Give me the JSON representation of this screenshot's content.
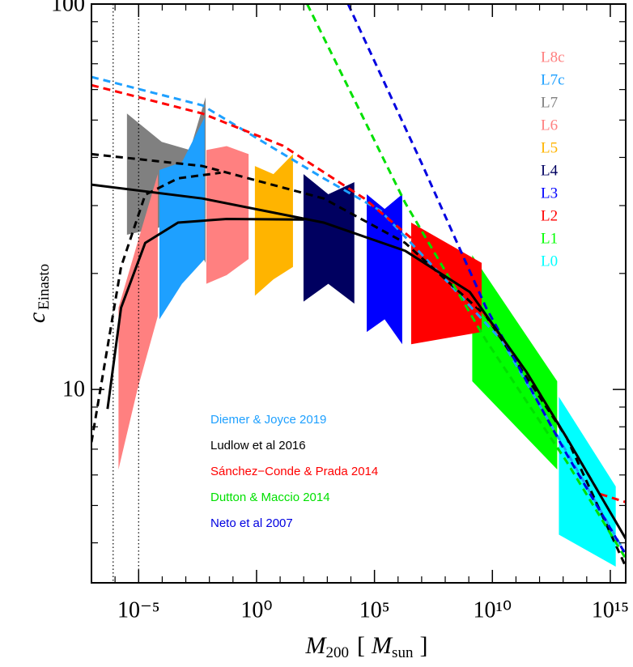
{
  "chart_data": {
    "type": "line",
    "x_scale": "log",
    "y_scale": "log",
    "xlim": [
      1e-07,
      4500000000000000.0
    ],
    "ylim": [
      3.15,
      100
    ],
    "xticks": [
      {
        "value": 1e-05,
        "label": "10⁻⁵"
      },
      {
        "value": 1,
        "label": "10⁰"
      },
      {
        "value": 100000,
        "label": "10⁵"
      },
      {
        "value": 10000000000,
        "label": "10¹⁰"
      },
      {
        "value": 1000000000000000.0,
        "label": "10¹⁵"
      }
    ],
    "yticks": [
      10,
      100
    ],
    "xminor_ticks": [
      1e-07,
      1e-06,
      0.0001,
      0.001,
      0.01,
      0.1,
      10,
      100,
      1000,
      10000,
      1000000.0,
      10000000.0,
      100000000.0,
      1000000000.0,
      100000000000.0,
      1000000000000.0,
      10000000000000.0,
      100000000000000.0
    ],
    "yminor_ticks": [
      4,
      5,
      6,
      7,
      8,
      9,
      20,
      30,
      40,
      50,
      60,
      70,
      80,
      90
    ],
    "x_label": {
      "main": "M",
      "sub": "200",
      "open": "[",
      "unit": "M",
      "unit_sub": "sun",
      "close": "]"
    },
    "y_label": {
      "main": "c",
      "sub": "Einasto"
    },
    "vlines": [
      8.3e-07,
      1e-05
    ],
    "legend": "lower left",
    "series": [
      {
        "name": "Diemer & Joyce 2019",
        "color": "#1ea0ff",
        "style": "dashed",
        "x": [
          1e-07,
          0.005,
          700,
          180000,
          100000000.0,
          25000000000.0,
          16000000000000.0,
          3700000000000000.0
        ],
        "values": [
          64.7,
          54.6,
          35.3,
          29.1,
          19.3,
          13.4,
          6.8,
          3.82
        ]
      },
      {
        "name": "Ludlow et al 2016",
        "color": "#000000",
        "style": "dashed",
        "x": [
          1e-07,
          0.005,
          700,
          2000000.0,
          5400000000.0,
          14000000000000.0,
          4500000000000000.0
        ],
        "values": [
          40.8,
          38.0,
          31.3,
          24.0,
          15.5,
          7.5,
          3.47
        ]
      },
      {
        "name": "Sánchez−Conde & Prada 2014",
        "color": "#ff0000",
        "style": "dashed",
        "x": [
          1e-07,
          0.005,
          13,
          37000,
          100000000.0,
          5400000000.0,
          280000000000.0,
          14000000000000.0,
          350000000000000.0,
          4500000000000000.0
        ],
        "values": [
          61.6,
          52,
          42.9,
          31.3,
          20.8,
          15.5,
          11.1,
          7.5,
          5.36,
          5.1
        ]
      },
      {
        "name": "Dutton & Maccio 2014",
        "color": "#00e000",
        "style": "dashed",
        "x": [
          140,
          2000000.0,
          5400000000.0,
          14000000000000.0,
          4500000000000000.0
        ],
        "values": [
          100,
          30.5,
          13.4,
          6.5,
          3.64
        ]
      },
      {
        "name": "Neto et al 2007",
        "color": "#0000e0",
        "style": "dashed",
        "x": [
          7600,
          9500000.0,
          5400000000.0,
          14000000000000.0,
          4500000000000000.0
        ],
        "values": [
          100,
          38.9,
          16.3,
          6.8,
          3.73
        ]
      },
      {
        "color": "#000000",
        "style": "dashed",
        "x": [
          1e-07,
          1.8e-06,
          1.9e-05,
          0.00047,
          0.03
        ],
        "values": [
          7.3,
          20.8,
          32,
          35.3,
          36.5
        ]
      },
      {
        "color": "#000000",
        "style": "solid",
        "x": [
          1e-07,
          0.005,
          700,
          2000000.0,
          1100000000.0,
          280000000000.0,
          14000000000000.0,
          4500000000000000.0
        ],
        "values": [
          34,
          31.3,
          27.1,
          22.9,
          17.9,
          11.1,
          7.5,
          4.1
        ]
      },
      {
        "color": "#000000",
        "style": "solid",
        "x": [
          4.8e-07,
          1.8e-06,
          1.9e-05,
          0.00047,
          0.054,
          100
        ],
        "values": [
          8.9,
          16.3,
          24,
          27.1,
          27.7,
          27.6
        ]
      }
    ],
    "bands": [
      {
        "name": "L8c",
        "color": "#ff8080",
        "x": [
          1.4e-06,
          8.9e-06,
          6.5e-05
        ],
        "upper": [
          16.3,
          24,
          36.2
        ],
        "lower": [
          6.2,
          10,
          15.5
        ]
      },
      {
        "name": "L7c",
        "color": "#1ea0ff",
        "x": [
          7.6e-05,
          0.00069,
          0.0063
        ],
        "upper": [
          37.1,
          38.9,
          50.8
        ],
        "lower": [
          15.2,
          18.8,
          21.8
        ]
      },
      {
        "name": "L7",
        "color": "#808080",
        "x": [
          3.2e-06,
          9.5e-05,
          0.0015,
          0.0069
        ],
        "upper": [
          52,
          43.9,
          41.8,
          57.3
        ],
        "lower": [
          25.2,
          26.4,
          25.8,
          21.3
        ]
      },
      {
        "name": "L6",
        "color": "#ff8080",
        "x": [
          0.0074,
          0.054,
          0.46
        ],
        "upper": [
          41.8,
          42.8,
          40.8
        ],
        "lower": [
          18.8,
          19.8,
          21.8
        ]
      },
      {
        "name": "L5",
        "color": "#ffb400",
        "x": [
          0.85,
          5.2,
          35
        ],
        "upper": [
          38,
          36.2,
          40.8
        ],
        "lower": [
          17.5,
          19.3,
          20.8
        ]
      },
      {
        "name": "L4",
        "color": "#000060",
        "x": [
          98,
          1100,
          14000
        ],
        "upper": [
          36.2,
          32.1,
          34.5
        ],
        "lower": [
          16.9,
          18.8,
          16.7
        ]
      },
      {
        "name": "L3",
        "color": "#0000ff",
        "x": [
          47000,
          270000,
          1500000.0
        ],
        "upper": [
          32.1,
          29.4,
          32.1
        ],
        "lower": [
          14.1,
          15.2,
          13.1
        ]
      },
      {
        "name": "L2",
        "color": "#ff0000",
        "x": [
          3600000.0,
          3500000000.0
        ],
        "upper": [
          27.1,
          21.3
        ],
        "lower": [
          13.1,
          14.1
        ]
      },
      {
        "name": "L1",
        "color": "#00ff00",
        "x": [
          1400000000.0,
          5600000000000.0
        ],
        "upper": [
          22.3,
          10.5
        ],
        "lower": [
          10.5,
          6.2
        ]
      },
      {
        "name": "L0",
        "color": "#00ffff",
        "x": [
          6600000000000.0,
          1700000000000000.0
        ],
        "upper": [
          9.57,
          5.6
        ],
        "lower": [
          4.2,
          3.47
        ]
      }
    ]
  }
}
